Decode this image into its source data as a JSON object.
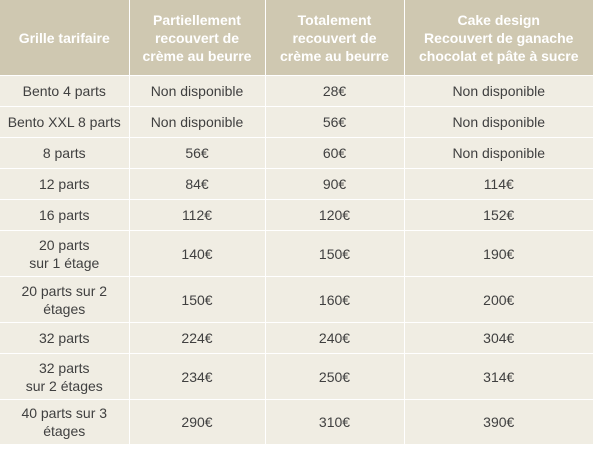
{
  "table": {
    "headers": [
      [
        "Grille tarifaire"
      ],
      [
        "Partiellement",
        "recouvert de",
        "crème au beurre"
      ],
      [
        "Totalement",
        "recouvert de",
        "crème au beurre"
      ],
      [
        "Cake design",
        "Recouvert de ganache",
        "chocolat et pâte à sucre"
      ]
    ],
    "rows": [
      {
        "label": [
          "Bento 4 parts"
        ],
        "partial": "Non disponible",
        "total": "28€",
        "cake": "Non disponible"
      },
      {
        "label": [
          "Bento XXL 8 parts"
        ],
        "partial": "Non disponible",
        "total": "56€",
        "cake": "Non disponible"
      },
      {
        "label": [
          "8 parts"
        ],
        "partial": "56€",
        "total": "60€",
        "cake": "Non disponible"
      },
      {
        "label": [
          "12 parts"
        ],
        "partial": "84€",
        "total": "90€",
        "cake": "114€"
      },
      {
        "label": [
          "16 parts"
        ],
        "partial": "112€",
        "total": "120€",
        "cake": "152€"
      },
      {
        "label": [
          "20 parts",
          "sur 1 étage"
        ],
        "partial": "140€",
        "total": "150€",
        "cake": "190€"
      },
      {
        "label": [
          "20 parts sur 2",
          "étages"
        ],
        "partial": "150€",
        "total": "160€",
        "cake": "200€"
      },
      {
        "label": [
          "32 parts"
        ],
        "partial": "224€",
        "total": "240€",
        "cake": "304€"
      },
      {
        "label": [
          "32 parts",
          "sur 2 étages"
        ],
        "partial": "234€",
        "total": "250€",
        "cake": "314€"
      },
      {
        "label": [
          "40 parts sur 3",
          "étages"
        ],
        "partial": "290€",
        "total": "310€",
        "cake": "390€"
      }
    ]
  }
}
